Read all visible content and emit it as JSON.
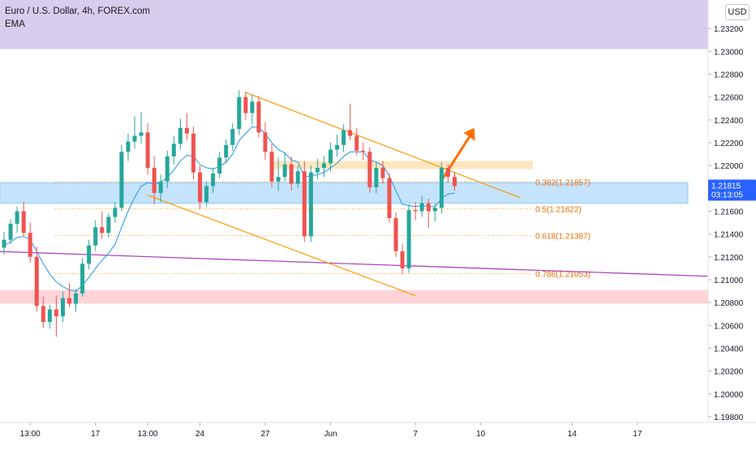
{
  "header": {
    "symbol_line": "Euro / U.S. Dollar, 4h, FOREX.com",
    "indicator_label": "EMA",
    "currency_button": "USD"
  },
  "price_badge": {
    "price": "1.21815",
    "countdown": "03:13:05",
    "color": "#2962ff"
  },
  "chart_data": {
    "type": "candlestick",
    "y_axis": {
      "range": [
        1.1975,
        1.2345
      ],
      "tick_labels": [
        "1.19800",
        "1.20000",
        "1.20200",
        "1.20400",
        "1.20600",
        "1.20800",
        "1.21000",
        "1.21200",
        "1.21400",
        "1.21600",
        "1.21800",
        "1.22000",
        "1.22200",
        "1.22400",
        "1.22600",
        "1.22800",
        "1.23000",
        "1.23200"
      ],
      "tick_values": [
        1.198,
        1.2,
        1.202,
        1.204,
        1.206,
        1.208,
        1.21,
        1.212,
        1.214,
        1.216,
        1.218,
        1.22,
        1.222,
        1.224,
        1.226,
        1.228,
        1.23,
        1.232
      ]
    },
    "x_axis": {
      "tick_labels": [
        "13:00",
        "17",
        "13:00",
        "24",
        "27",
        "Jun",
        "7",
        "10",
        "14",
        "17"
      ],
      "tick_bar_index": [
        4,
        14,
        22,
        30,
        40,
        50,
        63,
        73,
        87,
        97
      ]
    },
    "colors": {
      "up": "#26a69a",
      "down": "#ef5350",
      "ema": "#2196f3"
    },
    "candles": [
      [
        1.2128,
        1.2142,
        1.2122,
        1.2135
      ],
      [
        1.2135,
        1.2153,
        1.2131,
        1.2149
      ],
      [
        1.2149,
        1.2164,
        1.2141,
        1.216
      ],
      [
        1.216,
        1.2168,
        1.2138,
        1.2141
      ],
      [
        1.2141,
        1.215,
        1.2115,
        1.212
      ],
      [
        1.212,
        1.2129,
        1.2072,
        1.2077
      ],
      [
        1.2077,
        1.2085,
        1.2058,
        1.2063
      ],
      [
        1.2063,
        1.2078,
        1.2057,
        1.2074
      ],
      [
        1.2074,
        1.2086,
        1.205,
        1.2068
      ],
      [
        1.2068,
        1.209,
        1.2063,
        1.2084
      ],
      [
        1.2084,
        1.2097,
        1.2076,
        1.2079
      ],
      [
        1.2079,
        1.2092,
        1.2072,
        1.2088
      ],
      [
        1.2088,
        1.2119,
        1.2085,
        1.2114
      ],
      [
        1.2114,
        1.2135,
        1.2109,
        1.213
      ],
      [
        1.213,
        1.2152,
        1.2125,
        1.2146
      ],
      [
        1.2146,
        1.216,
        1.2136,
        1.2141
      ],
      [
        1.2141,
        1.2158,
        1.2137,
        1.2155
      ],
      [
        1.2155,
        1.2168,
        1.215,
        1.2163
      ],
      [
        1.2163,
        1.2218,
        1.216,
        1.2212
      ],
      [
        1.2212,
        1.2228,
        1.2204,
        1.2221
      ],
      [
        1.2221,
        1.2243,
        1.2215,
        1.2226
      ],
      [
        1.2226,
        1.2247,
        1.2219,
        1.2229
      ],
      [
        1.2229,
        1.2237,
        1.2192,
        1.2198
      ],
      [
        1.2198,
        1.2208,
        1.2166,
        1.2176
      ],
      [
        1.2176,
        1.2192,
        1.2168,
        1.2186
      ],
      [
        1.2186,
        1.2213,
        1.218,
        1.2208
      ],
      [
        1.2208,
        1.2226,
        1.2201,
        1.2219
      ],
      [
        1.2219,
        1.2241,
        1.2214,
        1.2233
      ],
      [
        1.2233,
        1.2246,
        1.2222,
        1.2228
      ],
      [
        1.2228,
        1.2234,
        1.2188,
        1.2194
      ],
      [
        1.2194,
        1.22,
        1.2162,
        1.2168
      ],
      [
        1.2168,
        1.2186,
        1.2164,
        1.2182
      ],
      [
        1.2182,
        1.2198,
        1.2176,
        1.2193
      ],
      [
        1.2193,
        1.2212,
        1.2189,
        1.2207
      ],
      [
        1.2207,
        1.2223,
        1.2202,
        1.2218
      ],
      [
        1.2218,
        1.2237,
        1.2213,
        1.2232
      ],
      [
        1.2232,
        1.2266,
        1.2227,
        1.226
      ],
      [
        1.226,
        1.2265,
        1.224,
        1.2246
      ],
      [
        1.2246,
        1.2262,
        1.2236,
        1.2256
      ],
      [
        1.2256,
        1.2261,
        1.2225,
        1.2229
      ],
      [
        1.2229,
        1.2238,
        1.2205,
        1.2212
      ],
      [
        1.2212,
        1.2219,
        1.2181,
        1.2186
      ],
      [
        1.2186,
        1.2207,
        1.2178,
        1.219
      ],
      [
        1.219,
        1.2211,
        1.2186,
        1.2201
      ],
      [
        1.2201,
        1.2208,
        1.2178,
        1.2184
      ],
      [
        1.2184,
        1.22,
        1.218,
        1.2195
      ],
      [
        1.2195,
        1.2204,
        1.2133,
        1.2138
      ],
      [
        1.2138,
        1.22,
        1.2133,
        1.2194
      ],
      [
        1.2194,
        1.2206,
        1.2188,
        1.2198
      ],
      [
        1.2198,
        1.2208,
        1.219,
        1.2202
      ],
      [
        1.2202,
        1.222,
        1.2195,
        1.2214
      ],
      [
        1.2214,
        1.2227,
        1.2208,
        1.2218
      ],
      [
        1.2218,
        1.2236,
        1.2212,
        1.2231
      ],
      [
        1.2231,
        1.2254,
        1.2222,
        1.2226
      ],
      [
        1.2226,
        1.2233,
        1.2209,
        1.2213
      ],
      [
        1.2213,
        1.222,
        1.2205,
        1.2212
      ],
      [
        1.2212,
        1.2216,
        1.2176,
        1.2181
      ],
      [
        1.2181,
        1.2203,
        1.2176,
        1.2198
      ],
      [
        1.2198,
        1.2204,
        1.2184,
        1.2189
      ],
      [
        1.2189,
        1.2193,
        1.215,
        1.2154
      ],
      [
        1.2154,
        1.2159,
        1.212,
        1.2125
      ],
      [
        1.2125,
        1.2131,
        1.2105,
        1.211
      ],
      [
        1.211,
        1.2166,
        1.2106,
        1.2161
      ],
      [
        1.2161,
        1.2168,
        1.2152,
        1.216
      ],
      [
        1.216,
        1.2173,
        1.2155,
        1.2167
      ],
      [
        1.2167,
        1.2171,
        1.2145,
        1.216
      ],
      [
        1.216,
        1.2167,
        1.2151,
        1.2163
      ],
      [
        1.2163,
        1.2203,
        1.2158,
        1.2198
      ],
      [
        1.2198,
        1.2201,
        1.2185,
        1.219
      ],
      [
        1.219,
        1.2194,
        1.2178,
        1.2182
      ]
    ],
    "ema_values": [
      1.213,
      1.2133,
      1.2137,
      1.2138,
      1.2135,
      1.2125,
      1.2114,
      1.2105,
      1.2098,
      1.2094,
      1.2091,
      1.209,
      1.2095,
      1.2102,
      1.211,
      1.2117,
      1.2123,
      1.2131,
      1.2146,
      1.216,
      1.2172,
      1.2182,
      1.2185,
      1.2184,
      1.2185,
      1.219,
      1.2196,
      1.2204,
      1.2209,
      1.2208,
      1.2201,
      1.2198,
      1.2197,
      1.2199,
      1.2203,
      1.221,
      1.2222,
      1.2228,
      1.2234,
      1.2233,
      1.2228,
      1.222,
      1.2214,
      1.2211,
      1.2205,
      1.2203,
      1.219,
      1.2191,
      1.2192,
      1.2194,
      1.2198,
      1.2202,
      1.2208,
      1.2212,
      1.2212,
      1.2212,
      1.2205,
      1.2203,
      1.22,
      1.2191,
      1.2178,
      1.2166,
      1.2165,
      1.2164,
      1.2165,
      1.2164,
      1.2164,
      1.2171,
      1.2175,
      1.2176
    ],
    "fibonacci_levels": [
      {
        "label": "0.382(1.21857)",
        "value": 1.21857
      },
      {
        "label": "0.5(1.21622)",
        "value": 1.21622
      },
      {
        "label": "0.618(1.21387)",
        "value": 1.21387
      },
      {
        "label": "0.786(1.21053)",
        "value": 1.21053
      }
    ],
    "zones": [
      {
        "name": "upper-resistance-zone",
        "y_top": 1.2345,
        "y_bottom": 1.2302,
        "color": "#d1c4e9"
      },
      {
        "name": "mid-zone",
        "y_top": 1.2185,
        "y_bottom": 1.2167,
        "color": "#bbdefb"
      },
      {
        "name": "lower-support-zone",
        "y_top": 1.2091,
        "y_bottom": 1.2079,
        "color": "#ffcdd2"
      },
      {
        "name": "resistance-box",
        "y_top": 1.2204,
        "y_bottom": 1.2197,
        "color": "#ffe0b2"
      }
    ],
    "channel_lines": {
      "color": "#ff9800",
      "upper": {
        "from_bar": 37,
        "from_price": 1.2264,
        "to_bar": 79,
        "to_price": 1.2172
      },
      "lower": {
        "from_bar": 22,
        "from_price": 1.2174,
        "to_bar": 63,
        "to_price": 1.2086
      }
    },
    "trend_line": {
      "color": "#ab47bc",
      "from_bar": -2,
      "from_price": 1.2125,
      "to_bar": 108,
      "to_price": 1.2103
    },
    "arrow": {
      "color": "#ff6d00",
      "from_bar": 67,
      "from_price": 1.2187,
      "to_bar": 72,
      "to_price": 1.2233
    }
  }
}
